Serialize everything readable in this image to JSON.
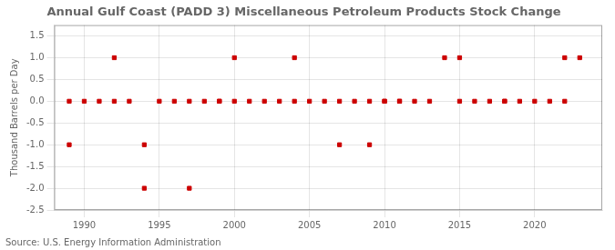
{
  "chart_data": {
    "type": "scatter",
    "title": "Annual Gulf Coast (PADD 3) Miscellaneous Petroleum Products Stock Change",
    "ylabel": "Thousand Barrels per Day",
    "annotations": [
      "Source: U.S. Energy Information Administration"
    ],
    "x": [
      1989,
      1989,
      1990,
      1991,
      1992,
      1992,
      1993,
      1994,
      1994,
      1995,
      1996,
      1997,
      1997,
      1998,
      1999,
      1999,
      2000,
      2000,
      2001,
      2002,
      2003,
      2004,
      2004,
      2005,
      2006,
      2007,
      2007,
      2008,
      2009,
      2009,
      2010,
      2010,
      2011,
      2011,
      2012,
      2013,
      2014,
      2015,
      2015,
      2016,
      2017,
      2018,
      2018,
      2019,
      2020,
      2021,
      2022,
      2022,
      2023
    ],
    "values": [
      -1,
      0,
      0,
      0,
      1,
      0,
      0,
      -1,
      -2,
      0,
      0,
      -2,
      0,
      0,
      0,
      0,
      0,
      1,
      0,
      0,
      0,
      1,
      0,
      0,
      0,
      -1,
      0,
      0,
      -1,
      0,
      0,
      0,
      0,
      0,
      0,
      0,
      1,
      0,
      1,
      0,
      0,
      0,
      0,
      0,
      0,
      0,
      1,
      0,
      1
    ],
    "color": "#cc0000",
    "marker": "square",
    "xlim": [
      1988.0,
      2024.5
    ],
    "ylim": [
      -2.5,
      1.75
    ],
    "xticks": [
      1990,
      1995,
      2000,
      2005,
      2010,
      2015,
      2020
    ],
    "yticks": [
      -2.5,
      {
        "value": -2.0,
        "label": "-2.0"
      },
      -1.5,
      {
        "value": -1.0,
        "label": "-1.0"
      },
      -0.5,
      {
        "value": 0.0,
        "label": "0.0"
      },
      0.5,
      {
        "value": 1.0,
        "label": "1.0"
      },
      1.5
    ],
    "grid": true
  }
}
